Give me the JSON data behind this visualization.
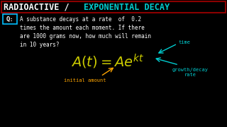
{
  "bg_color": "#000000",
  "title_white": "RADIOACTIVE / ",
  "title_cyan": "EXPONENTIAL DECAY",
  "title_box_color": "#8B0000",
  "q_box_color": "#00BFFF",
  "q_label": "Q:",
  "question_lines": [
    "A substance decays at a rate  of  0.2",
    "times the amount each moment. If there",
    "are 1000 grams now, how much will remain",
    "in 10 years?"
  ],
  "formula_color": "#CCCC00",
  "label_time": "time",
  "label_initial": "initial amount",
  "label_growth": "growth/decay\nrate",
  "label_color": "#00CED1",
  "orange": "#FFA500",
  "white": "#FFFFFF",
  "cyan": "#00CED1"
}
